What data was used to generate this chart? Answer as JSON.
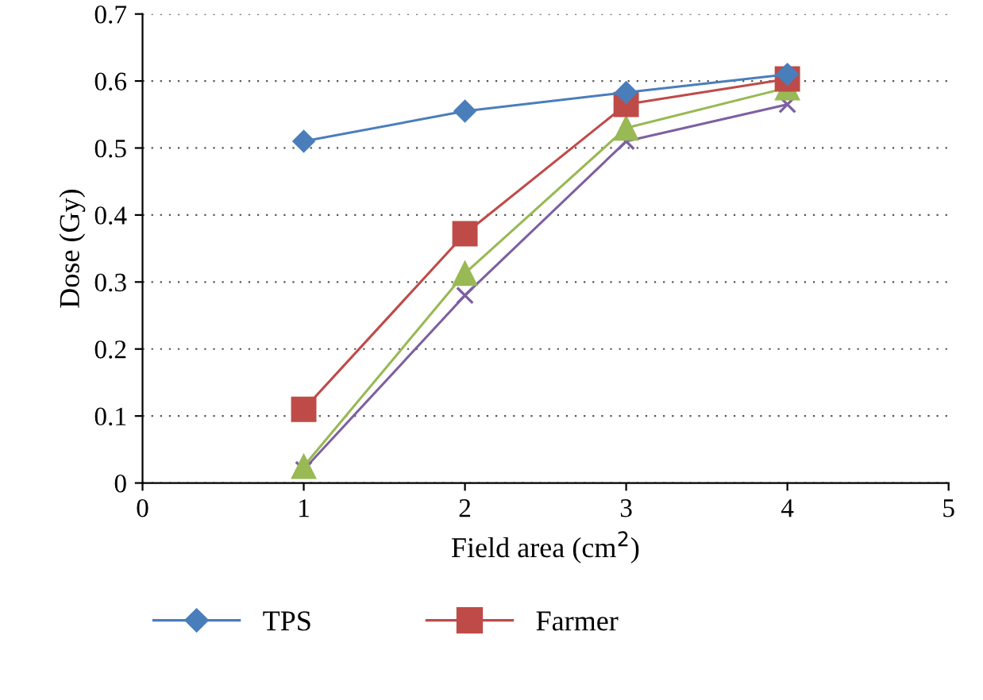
{
  "chart_data": {
    "type": "line",
    "xlabel": "Field area (cm$^{2}$)",
    "ylabel": "Dose (Gy)",
    "x": [
      1,
      2,
      3,
      4
    ],
    "series": [
      {
        "name": "TPS",
        "color": "#4a7ebb",
        "marker": "diamond",
        "values": [
          0.51,
          0.555,
          0.583,
          0.61
        ]
      },
      {
        "name": "Farmer",
        "color": "#be4b48",
        "marker": "square",
        "values": [
          0.11,
          0.372,
          0.565,
          0.603
        ]
      },
      {
        "color": "#98b954",
        "marker": "triangle",
        "values": [
          0.025,
          0.313,
          0.53,
          0.59
        ]
      },
      {
        "color": "#7d60a0",
        "marker": "cross",
        "values": [
          0.02,
          0.28,
          0.51,
          0.565
        ]
      }
    ],
    "xlim": [
      0,
      5
    ],
    "xticks": [
      0,
      1,
      2,
      3,
      4,
      5
    ],
    "ylim": [
      0,
      0.7
    ],
    "yticks": [
      0,
      0.1,
      0.2,
      0.3,
      0.4,
      0.5,
      0.6,
      0.7
    ],
    "grid": "y",
    "legend": "bottom"
  }
}
